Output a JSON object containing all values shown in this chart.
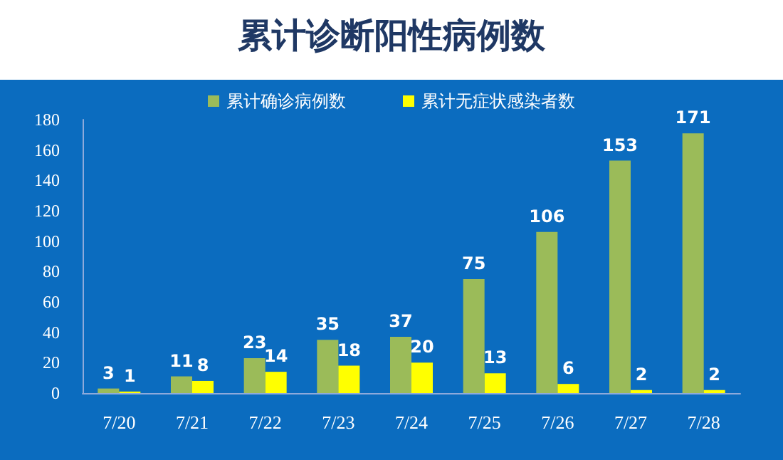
{
  "chart_data": {
    "type": "bar",
    "title": "累计诊断阳性病例数",
    "categories": [
      "7/20",
      "7/21",
      "7/22",
      "7/23",
      "7/24",
      "7/25",
      "7/26",
      "7/27",
      "7/28"
    ],
    "series": [
      {
        "name": "累计确诊病例数",
        "color": "#9bbb59",
        "values": [
          3,
          11,
          23,
          35,
          37,
          75,
          106,
          153,
          171
        ]
      },
      {
        "name": "累计无症状感染者数",
        "color": "#ffff00",
        "values": [
          1,
          8,
          14,
          18,
          20,
          13,
          6,
          2,
          2
        ]
      }
    ],
    "ylim": [
      0,
      180
    ],
    "yticks": [
      0,
      20,
      40,
      60,
      80,
      100,
      120,
      140,
      160,
      180
    ],
    "grid": false,
    "legend": "top",
    "data_labels": true
  }
}
